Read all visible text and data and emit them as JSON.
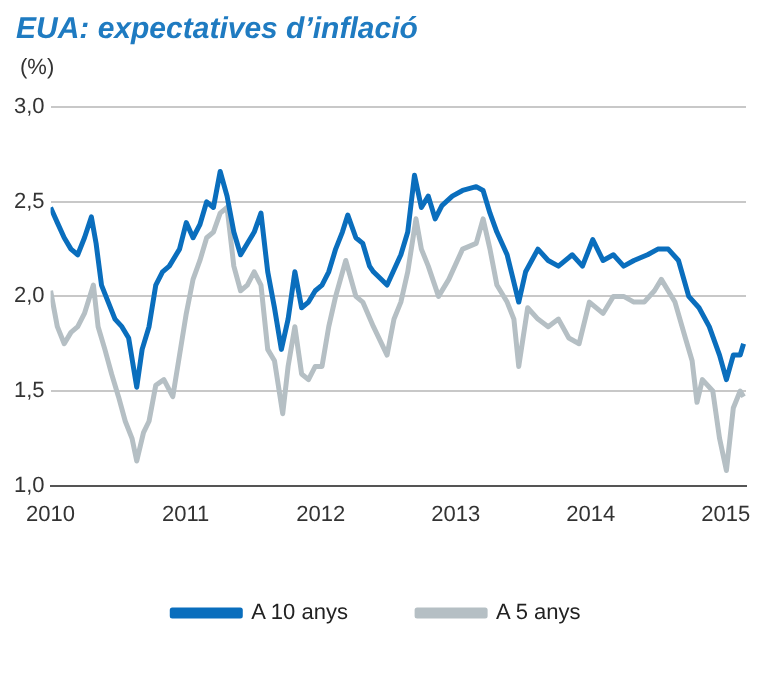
{
  "chart_data": {
    "type": "line",
    "title": "EUA: expectatives d’inflació",
    "ylabel": "(%)",
    "xlim": [
      2010,
      2015.15
    ],
    "xticks": [
      2010,
      2011,
      2012,
      2013,
      2014,
      2015
    ],
    "ylim": [
      1,
      3
    ],
    "yticks": [
      {
        "value": 1,
        "label": "1,0"
      },
      {
        "value": 1.5,
        "label": "1,5"
      },
      {
        "value": 2,
        "label": "2,0"
      },
      {
        "value": 2.5,
        "label": "2,5"
      },
      {
        "value": 3,
        "label": "3,0"
      }
    ],
    "grid": "y",
    "legend": "bottom",
    "marker": "none",
    "line_style": "solid",
    "series": [
      {
        "name": "A 10 anys",
        "color": "#0a6ebd",
        "x": [
          2010.0,
          2010.05,
          2010.101,
          2010.151,
          2010.201,
          2010.251,
          2010.302,
          2010.337,
          2010.377,
          2010.427,
          2010.477,
          2010.528,
          2010.578,
          2010.638,
          2010.678,
          2010.729,
          2010.779,
          2010.829,
          2010.879,
          2010.955,
          2011.005,
          2011.055,
          2011.106,
          2011.156,
          2011.206,
          2011.256,
          2011.307,
          2011.357,
          2011.407,
          2011.457,
          2011.508,
          2011.558,
          2011.608,
          2011.658,
          2011.709,
          2011.759,
          2011.809,
          2011.859,
          2011.91,
          2011.96,
          2012.01,
          2012.06,
          2012.111,
          2012.161,
          2012.201,
          2012.261,
          2012.312,
          2012.362,
          2012.391,
          2012.492,
          2012.594,
          2012.645,
          2012.695,
          2012.746,
          2012.797,
          2012.848,
          2012.898,
          2012.975,
          2013.051,
          2013.152,
          2013.203,
          2013.254,
          2013.305,
          2013.381,
          2013.467,
          2013.518,
          2013.609,
          2013.685,
          2013.761,
          2013.863,
          2013.939,
          2014.015,
          2014.091,
          2014.168,
          2014.244,
          2014.32,
          2014.421,
          2014.497,
          2014.574,
          2014.65,
          2014.726,
          2014.802,
          2014.878,
          2014.954,
          2015.005,
          2015.056,
          2015.107,
          2015.132
        ],
        "values": [
          2.47,
          2.39,
          2.31,
          2.25,
          2.22,
          2.31,
          2.42,
          2.28,
          2.06,
          1.97,
          1.88,
          1.84,
          1.78,
          1.52,
          1.72,
          1.84,
          2.06,
          2.13,
          2.16,
          2.25,
          2.39,
          2.31,
          2.38,
          2.5,
          2.47,
          2.66,
          2.53,
          2.34,
          2.22,
          2.28,
          2.34,
          2.44,
          2.13,
          1.94,
          1.72,
          1.88,
          2.13,
          1.94,
          1.97,
          2.03,
          2.06,
          2.13,
          2.25,
          2.34,
          2.43,
          2.31,
          2.28,
          2.16,
          2.13,
          2.06,
          2.22,
          2.34,
          2.64,
          2.47,
          2.53,
          2.41,
          2.48,
          2.53,
          2.56,
          2.58,
          2.56,
          2.44,
          2.34,
          2.22,
          1.97,
          2.13,
          2.25,
          2.19,
          2.16,
          2.22,
          2.16,
          2.3,
          2.19,
          2.22,
          2.16,
          2.19,
          2.22,
          2.25,
          2.25,
          2.19,
          2.0,
          1.94,
          1.84,
          1.69,
          1.56,
          1.69,
          1.69,
          1.75
        ]
      },
      {
        "name": "A 5 anys",
        "color": "#b5bfc4",
        "x": [
          2010.0,
          2010.05,
          2010.101,
          2010.151,
          2010.201,
          2010.251,
          2010.317,
          2010.352,
          2010.402,
          2010.452,
          2010.503,
          2010.553,
          2010.603,
          2010.638,
          2010.688,
          2010.729,
          2010.779,
          2010.839,
          2010.905,
          2010.955,
          2011.005,
          2011.055,
          2011.106,
          2011.156,
          2011.206,
          2011.256,
          2011.307,
          2011.357,
          2011.407,
          2011.457,
          2011.508,
          2011.558,
          2011.608,
          2011.658,
          2011.719,
          2011.759,
          2011.809,
          2011.859,
          2011.91,
          2011.96,
          2012.01,
          2012.06,
          2012.111,
          2012.186,
          2012.261,
          2012.312,
          2012.391,
          2012.492,
          2012.543,
          2012.594,
          2012.645,
          2012.706,
          2012.746,
          2012.797,
          2012.873,
          2012.949,
          2013.051,
          2013.152,
          2013.203,
          2013.254,
          2013.305,
          2013.381,
          2013.431,
          2013.467,
          2013.533,
          2013.609,
          2013.685,
          2013.761,
          2013.838,
          2013.914,
          2013.99,
          2014.091,
          2014.168,
          2014.244,
          2014.32,
          2014.396,
          2014.472,
          2014.523,
          2014.624,
          2014.701,
          2014.751,
          2014.787,
          2014.827,
          2014.904,
          2014.954,
          2015.005,
          2015.056,
          2015.107,
          2015.132
        ],
        "values": [
          2.03,
          1.84,
          1.75,
          1.81,
          1.84,
          1.91,
          2.06,
          1.84,
          1.72,
          1.59,
          1.47,
          1.34,
          1.25,
          1.13,
          1.28,
          1.34,
          1.53,
          1.56,
          1.47,
          1.69,
          1.91,
          2.09,
          2.19,
          2.31,
          2.34,
          2.44,
          2.47,
          2.16,
          2.03,
          2.06,
          2.13,
          2.06,
          1.72,
          1.66,
          1.38,
          1.63,
          1.84,
          1.59,
          1.56,
          1.63,
          1.63,
          1.84,
          2.0,
          2.19,
          2.0,
          1.97,
          1.84,
          1.69,
          1.88,
          1.97,
          2.13,
          2.41,
          2.25,
          2.16,
          2.0,
          2.09,
          2.25,
          2.28,
          2.41,
          2.25,
          2.06,
          1.97,
          1.88,
          1.63,
          1.94,
          1.88,
          1.84,
          1.88,
          1.78,
          1.75,
          1.97,
          1.91,
          2.0,
          2.0,
          1.97,
          1.97,
          2.03,
          2.09,
          1.97,
          1.78,
          1.66,
          1.44,
          1.56,
          1.5,
          1.25,
          1.08,
          1.41,
          1.5,
          1.47
        ]
      }
    ]
  }
}
